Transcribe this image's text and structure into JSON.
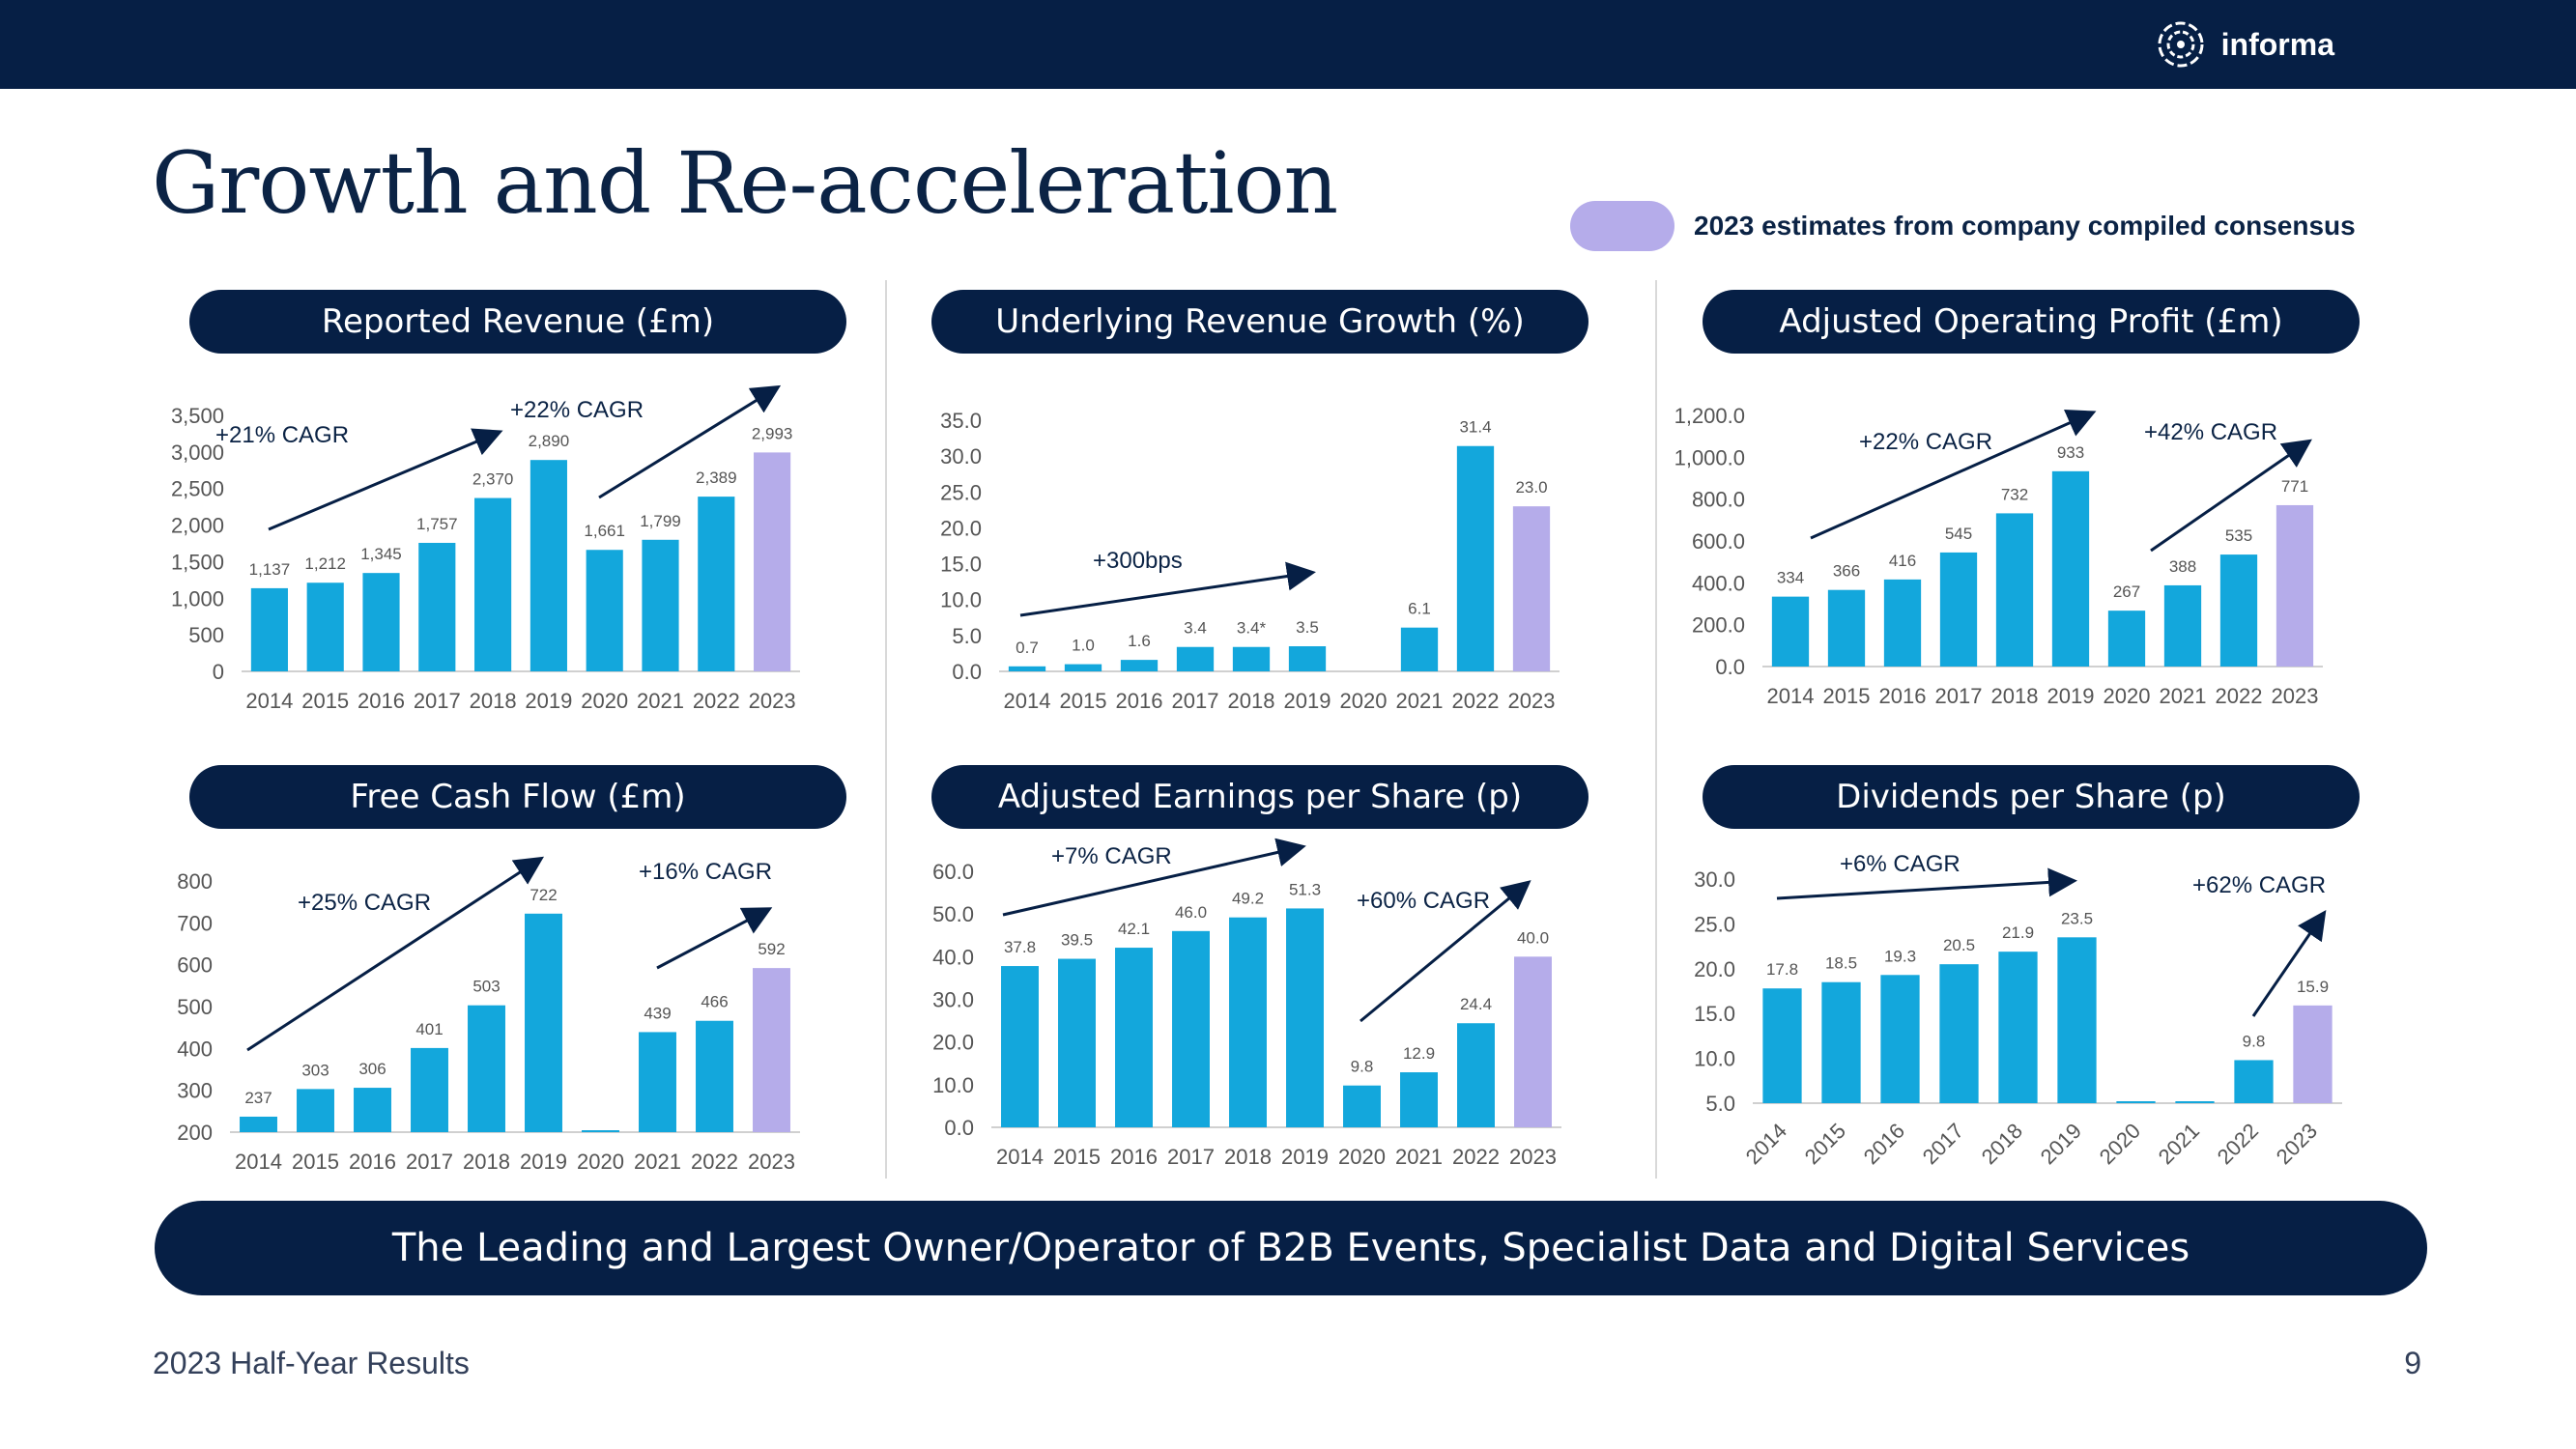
{
  "header": {
    "logo_text": "informa"
  },
  "title": "Growth and Re-acceleration",
  "legend": {
    "text": "2023 estimates from company compiled consensus",
    "color": "#b5acea"
  },
  "colors": {
    "bar": "#13a7dc",
    "estimate_bar": "#b5acea",
    "navy": "#061f45"
  },
  "footer": {
    "left": "2023 Half-Year Results",
    "page_number": "9"
  },
  "banner": "The Leading and Largest Owner/Operator of B2B Events, Specialist Data and Digital Services",
  "chart_data": [
    {
      "type": "bar",
      "title": "Reported Revenue (£m)",
      "categories": [
        "2014",
        "2015",
        "2016",
        "2017",
        "2018",
        "2019",
        "2020",
        "2021",
        "2022",
        "2023"
      ],
      "values": [
        1137,
        1212,
        1345,
        1757,
        2370,
        2890,
        1661,
        1799,
        2389,
        2993
      ],
      "labels": [
        "1,137",
        "1,212",
        "1,345",
        "1,757",
        "2,370",
        "2,890",
        "1,661",
        "1,799",
        "2,389",
        "2,993"
      ],
      "estimate_index": 9,
      "ylim": [
        0,
        3500
      ],
      "yticks": [
        "0",
        "500",
        "1,000",
        "1,500",
        "2,000",
        "2,500",
        "3,000",
        "3,500"
      ],
      "annotations": [
        "+21% CAGR",
        "+22% CAGR"
      ],
      "xlabel_rotated": false
    },
    {
      "type": "bar",
      "title": "Underlying Revenue Growth (%)",
      "categories": [
        "2014",
        "2015",
        "2016",
        "2017",
        "2018",
        "2019",
        "2020",
        "2021",
        "2022",
        "2023"
      ],
      "values": [
        0.7,
        1.0,
        1.6,
        3.4,
        3.4,
        3.5,
        null,
        6.1,
        31.4,
        23.0
      ],
      "labels": [
        "0.7",
        "1.0",
        "1.6",
        "3.4",
        "3.4*",
        "3.5",
        "",
        "6.1",
        "31.4",
        "23.0"
      ],
      "estimate_index": 9,
      "ylim": [
        0,
        35
      ],
      "yticks": [
        "0.0",
        "5.0",
        "10.0",
        "15.0",
        "20.0",
        "25.0",
        "30.0",
        "35.0"
      ],
      "annotations": [
        "+300bps"
      ],
      "xlabel_rotated": false
    },
    {
      "type": "bar",
      "title": "Adjusted Operating Profit (£m)",
      "categories": [
        "2014",
        "2015",
        "2016",
        "2017",
        "2018",
        "2019",
        "2020",
        "2021",
        "2022",
        "2023"
      ],
      "values": [
        334,
        366,
        416,
        545,
        732,
        933,
        267,
        388,
        535,
        771
      ],
      "labels": [
        "334",
        "366",
        "416",
        "545",
        "732",
        "933",
        "267",
        "388",
        "535",
        "771"
      ],
      "estimate_index": 9,
      "ylim": [
        0,
        1200
      ],
      "yticks": [
        "0.0",
        "200.0",
        "400.0",
        "600.0",
        "800.0",
        "1,000.0",
        "1,200.0"
      ],
      "annotations": [
        "+22% CAGR",
        "+42% CAGR"
      ],
      "xlabel_rotated": false
    },
    {
      "type": "bar",
      "title": "Free Cash Flow (£m)",
      "categories": [
        "2014",
        "2015",
        "2016",
        "2017",
        "2018",
        "2019",
        "2020",
        "2021",
        "2022",
        "2023"
      ],
      "values": [
        237,
        303,
        306,
        401,
        503,
        722,
        197,
        439,
        466,
        592
      ],
      "labels": [
        "237",
        "303",
        "306",
        "401",
        "503",
        "722",
        "",
        "439",
        "466",
        "592"
      ],
      "estimate_index": 9,
      "ylim": [
        200,
        800
      ],
      "yticks": [
        "200",
        "300",
        "400",
        "500",
        "600",
        "700",
        "800"
      ],
      "annotations": [
        "+25% CAGR",
        "+16% CAGR"
      ],
      "xlabel_rotated": false
    },
    {
      "type": "bar",
      "title": "Adjusted Earnings per Share (p)",
      "categories": [
        "2014",
        "2015",
        "2016",
        "2017",
        "2018",
        "2019",
        "2020",
        "2021",
        "2022",
        "2023"
      ],
      "values": [
        37.8,
        39.5,
        42.1,
        46.0,
        49.2,
        51.3,
        9.8,
        12.9,
        24.4,
        40.0
      ],
      "labels": [
        "37.8",
        "39.5",
        "42.1",
        "46.0",
        "49.2",
        "51.3",
        "9.8",
        "12.9",
        "24.4",
        "40.0"
      ],
      "estimate_index": 9,
      "ylim": [
        0,
        60
      ],
      "yticks": [
        "0.0",
        "10.0",
        "20.0",
        "30.0",
        "40.0",
        "50.0",
        "60.0"
      ],
      "annotations": [
        "+7% CAGR",
        "+60% CAGR"
      ],
      "xlabel_rotated": false
    },
    {
      "type": "bar",
      "title": "Dividends per Share (p)",
      "categories": [
        "2014",
        "2015",
        "2016",
        "2017",
        "2018",
        "2019",
        "2020",
        "2021",
        "2022",
        "2023"
      ],
      "values": [
        17.8,
        18.5,
        19.3,
        20.5,
        21.9,
        23.5,
        5.2,
        5.2,
        9.8,
        15.9
      ],
      "labels": [
        "17.8",
        "18.5",
        "19.3",
        "20.5",
        "21.9",
        "23.5",
        "",
        "",
        "9.8",
        "15.9"
      ],
      "estimate_index": 9,
      "ylim": [
        5,
        30
      ],
      "yticks": [
        "5.0",
        "10.0",
        "15.0",
        "20.0",
        "25.0",
        "30.0"
      ],
      "annotations": [
        "+6% CAGR",
        "+62% CAGR"
      ],
      "xlabel_rotated": true
    }
  ]
}
